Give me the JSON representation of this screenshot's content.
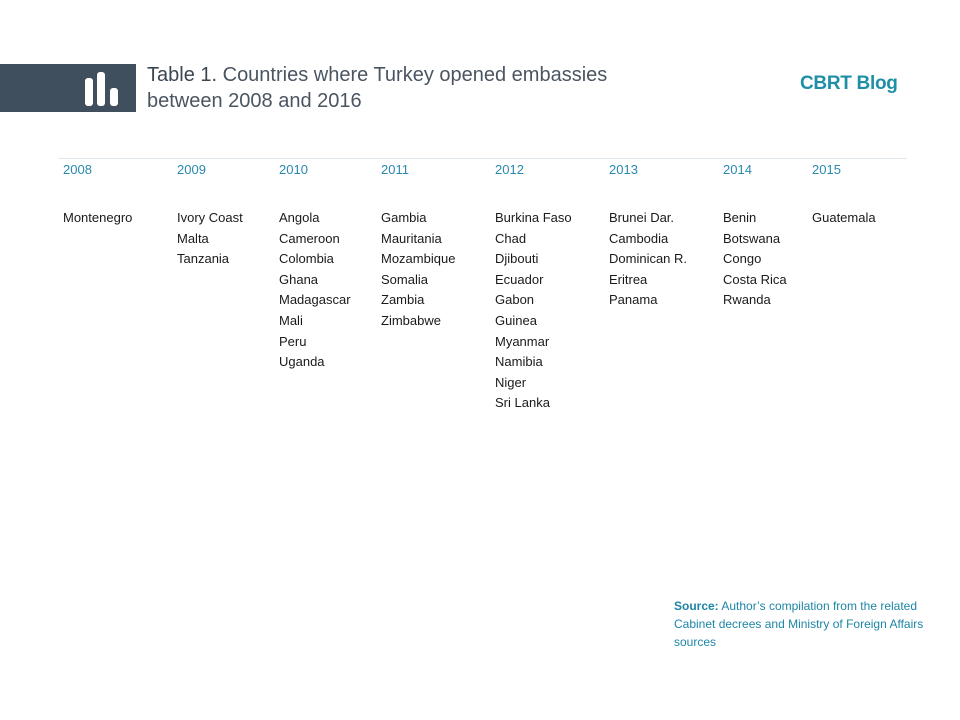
{
  "header": {
    "title_prefix": "Table 1.",
    "title_rest": " Countries where Turkey opened embassies",
    "title_line2": "between 2008 and 2016",
    "brand": "CBRT Blog",
    "logo_icon": "bar-chart-icon"
  },
  "table": {
    "columns": [
      {
        "year": "2008",
        "countries": [
          "Montenegro"
        ]
      },
      {
        "year": "2009",
        "countries": [
          "Ivory Coast",
          "Malta",
          "Tanzania"
        ]
      },
      {
        "year": "2010",
        "countries": [
          "Angola",
          "Cameroon",
          "Colombia",
          "Ghana",
          "Madagascar",
          "Mali",
          "Peru",
          "Uganda"
        ]
      },
      {
        "year": "2011",
        "countries": [
          "Gambia",
          "Mauritania",
          "Mozambique",
          "Somalia",
          "Zambia",
          "Zimbabwe"
        ]
      },
      {
        "year": "2012",
        "countries": [
          "Burkina Faso",
          "Chad",
          "Djibouti",
          "Ecuador",
          "Gabon",
          "Guinea",
          "Myanmar",
          "Namibia",
          "Niger",
          "Sri Lanka"
        ]
      },
      {
        "year": "2013",
        "countries": [
          "Brunei Dar.",
          "Cambodia",
          "Dominican R.",
          "Eritrea",
          "Panama"
        ]
      },
      {
        "year": "2014",
        "countries": [
          "Benin",
          "Botswana",
          "Congo",
          "Costa Rica",
          "Rwanda"
        ]
      },
      {
        "year": "2015",
        "countries": [
          "Guatemala"
        ]
      }
    ]
  },
  "source": {
    "label": "Source:",
    "text": " Author’s compilation from the related Cabinet decrees and Ministry of Foreign Affairs sources"
  },
  "colors": {
    "band": "#3f4f5e",
    "accent": "#1f8fa8",
    "year": "#2a88ad",
    "body_text": "#1a1a1a"
  }
}
